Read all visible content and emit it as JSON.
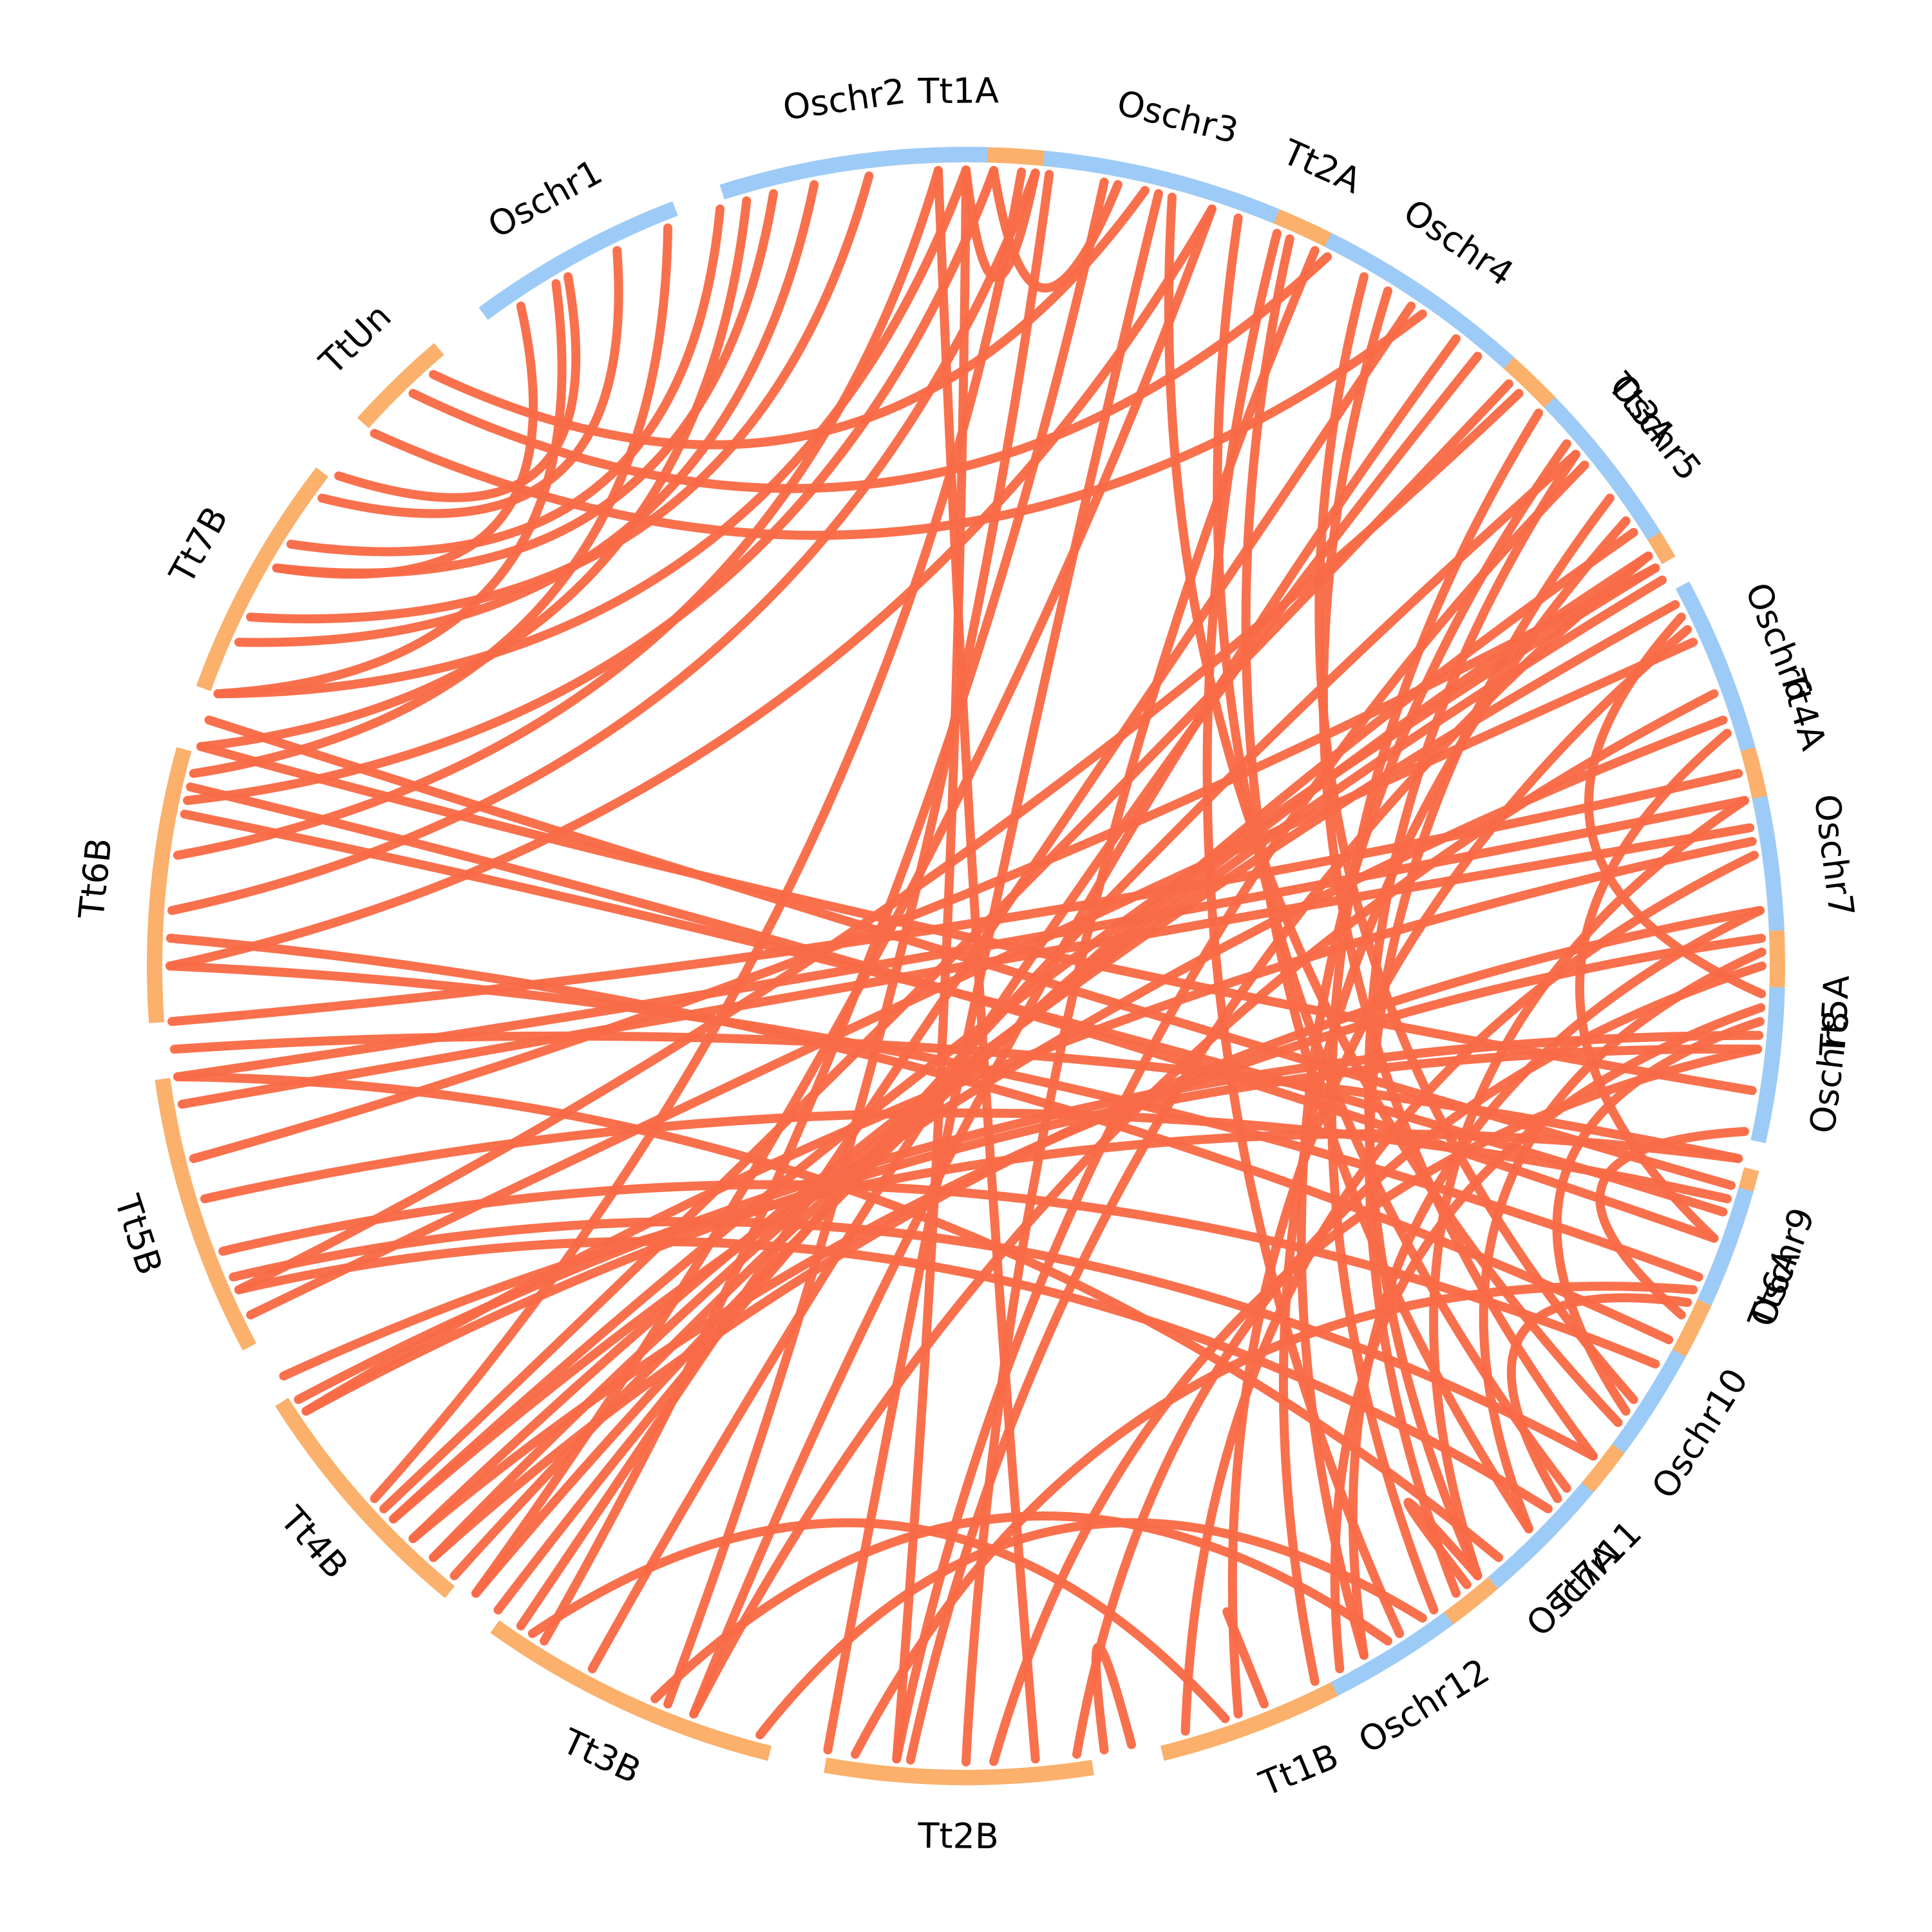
{
  "colors": {
    "wheat_track": "#FBB06B",
    "rice_track": "#9DCBF7",
    "link": "#F96B47"
  },
  "chromosomes": [
    {
      "name": "Tt1A",
      "group": "wheat",
      "start": -8.0,
      "end": 7.0
    },
    {
      "name": "Tt2A",
      "group": "wheat",
      "start": 12.0,
      "end": 36.0
    },
    {
      "name": "Tt3A",
      "group": "wheat",
      "start": 41.0,
      "end": 60.0
    },
    {
      "name": "Tt4A",
      "group": "wheat",
      "start": 65.0,
      "end": 81.0
    },
    {
      "name": "Tt5A",
      "group": "wheat",
      "start": 86.5,
      "end": 100.0
    },
    {
      "name": "Tt6A",
      "group": "wheat",
      "start": 104.5,
      "end": 119.0
    },
    {
      "name": "Tt7A",
      "group": "wheat",
      "start": 124.0,
      "end": 145.5
    },
    {
      "name": "Tt1B",
      "group": "wheat",
      "start": 149.0,
      "end": 166.0
    },
    {
      "name": "Tt2B",
      "group": "wheat",
      "start": 171.0,
      "end": 190.0
    },
    {
      "name": "Tt3B",
      "group": "wheat",
      "start": 194.0,
      "end": 215.5
    },
    {
      "name": "Tt4B",
      "group": "wheat",
      "start": 219.5,
      "end": 237.5
    },
    {
      "name": "Tt5B",
      "group": "wheat",
      "start": 242.0,
      "end": 262.0
    },
    {
      "name": "Tt6B",
      "group": "wheat",
      "start": 266.0,
      "end": 285.5
    },
    {
      "name": "Tt7B",
      "group": "wheat",
      "start": 290.0,
      "end": 307.5
    },
    {
      "name": "TtUn",
      "group": "wheat",
      "start": 312.0,
      "end": 319.5
    },
    {
      "name": "Oschr1",
      "group": "rice",
      "start": 323.5,
      "end": 339.0
    },
    {
      "name": "Oschr2",
      "group": "rice",
      "start": 342.5,
      "end": 361.5
    },
    {
      "name": "Oschr3",
      "group": "rice",
      "start": 365.5,
      "end": 382.5
    },
    {
      "name": "Oschr4",
      "group": "rice",
      "start": 386.5,
      "end": 402.0
    },
    {
      "name": "Oschr5",
      "group": "rice",
      "start": 406.0,
      "end": 418.0
    },
    {
      "name": "Oschr6",
      "group": "rice",
      "start": 422.0,
      "end": 434.5
    },
    {
      "name": "Oschr7",
      "group": "rice",
      "start": 438.0,
      "end": 447.5
    },
    {
      "name": "Oschr8",
      "group": "rice",
      "start": 451.5,
      "end": 462.5
    },
    {
      "name": "Oschr9",
      "group": "rice",
      "start": 466.0,
      "end": 474.5
    },
    {
      "name": "Oschr10",
      "group": "rice",
      "start": 478.5,
      "end": 486.5
    },
    {
      "name": "Oschr11",
      "group": "rice",
      "start": 490.0,
      "end": 499.5
    },
    {
      "name": "Oschr12",
      "group": "rice",
      "start": 503.5,
      "end": 513.0
    }
  ],
  "links": [
    [
      -2,
      535
    ],
    [
      0,
      545
    ],
    [
      6,
      562
    ],
    [
      18,
      578
    ],
    [
      34,
      574
    ],
    [
      43,
      587
    ],
    [
      57,
      218
    ],
    [
      59,
      220
    ],
    [
      60,
      226
    ],
    [
      61,
      222
    ],
    [
      63,
      224
    ],
    [
      78,
      500
    ],
    [
      80,
      260
    ],
    [
      86,
      510
    ],
    [
      89,
      495
    ],
    [
      93,
      512
    ],
    [
      96,
      236
    ],
    [
      99,
      286
    ],
    [
      106,
      288
    ],
    [
      108,
      281
    ],
    [
      110,
      283
    ],
    [
      113,
      270
    ],
    [
      118,
      272
    ],
    [
      128,
      247
    ],
    [
      133,
      246
    ],
    [
      138,
      262
    ],
    [
      140,
      410
    ],
    [
      142,
      414
    ],
    [
      144,
      406
    ],
    [
      147,
      383
    ],
    [
      150,
      409
    ],
    [
      154,
      416
    ],
    [
      160,
      425
    ],
    [
      164,
      442
    ],
    [
      172,
      450
    ],
    [
      178,
      456
    ],
    [
      188,
      474
    ],
    [
      203,
      508
    ],
    [
      213,
      521
    ],
    [
      222,
      446
    ],
    [
      224,
      448
    ],
    [
      226,
      432
    ],
    [
      244,
      426
    ],
    [
      253,
      467
    ],
    [
      264,
      464
    ],
    [
      270,
      378
    ],
    [
      274,
      365
    ],
    [
      278,
      358
    ],
    [
      282,
      362
    ],
    [
      290,
      360
    ],
    [
      294,
      349
    ],
    [
      296,
      353
    ],
    [
      300,
      346
    ],
    [
      302,
      342
    ],
    [
      306,
      334
    ],
    [
      308,
      330
    ],
    [
      246,
      404
    ],
    [
      256,
      420
    ],
    [
      262,
      438
    ],
    [
      266,
      436
    ],
    [
      236,
      441
    ],
    [
      316,
      387
    ],
    [
      318,
      373
    ],
    [
      312,
      395
    ],
    [
      125,
      375
    ],
    [
      123,
      390
    ],
    [
      128,
      392
    ],
    [
      131,
      380
    ],
    [
      135,
      384
    ],
    [
      300,
      326
    ],
    [
      290,
      329
    ],
    [
      284,
      338
    ],
    [
      286,
      344
    ],
    [
      249,
      480
    ],
    [
      239,
      464
    ],
    [
      237,
      455
    ],
    [
      216,
      410
    ],
    [
      208,
      400
    ],
    [
      200,
      430
    ],
    [
      195,
      505
    ],
    [
      184,
      419
    ],
    [
      170,
      528
    ],
    [
      158,
      518
    ],
    [
      141,
      500
    ],
    [
      115,
      492
    ],
    [
      102,
      476
    ],
    [
      94,
      484
    ],
    [
      73,
      470
    ],
    [
      64,
      452
    ],
    [
      51,
      545
    ],
    [
      38,
      560
    ],
    [
      26,
      540
    ],
    [
      14,
      550
    ],
    [
      10,
      572
    ],
    [
      4,
      588
    ],
    [
      0,
      365
    ],
    [
      2,
      371
    ]
  ]
}
